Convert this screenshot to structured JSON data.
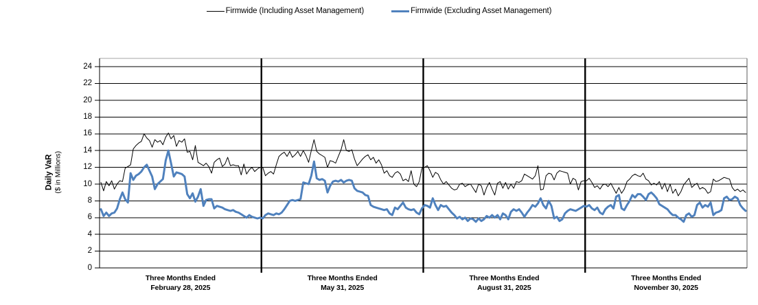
{
  "legend": {
    "items": [
      {
        "label": "Firmwide (Including Asset Management)",
        "color": "#000000",
        "thickness": 1
      },
      {
        "label": "Firmwide (Excluding Asset Management)",
        "color": "#4f81bd",
        "thickness": 3
      }
    ]
  },
  "y_axis": {
    "title_line1": "Daily VaR",
    "title_line2": "($ in Millions)"
  },
  "x_axis": {
    "labels": [
      {
        "line1": "Three Months Ended",
        "line2": "February 28, 2025"
      },
      {
        "line1": "Three Months Ended",
        "line2": "May 31, 2025"
      },
      {
        "line1": "Three Months Ended",
        "line2": "August 31, 2025"
      },
      {
        "line1": "Three Months Ended",
        "line2": "November 30, 2025"
      }
    ]
  },
  "chart_data": {
    "type": "line",
    "title": "",
    "xlabel": "",
    "ylabel": "Daily VaR ($ in Millions)",
    "ylim": [
      0,
      24
    ],
    "y_tick_step": 2,
    "grid": true,
    "legend_position": "top",
    "quarter_dividers": true,
    "x_groups": [
      "Three Months Ended February 28, 2025",
      "Three Months Ended May 31, 2025",
      "Three Months Ended August 31, 2025",
      "Three Months Ended November 30, 2025"
    ],
    "series": [
      {
        "name": "Firmwide (Including Asset Management)",
        "color": "#000000",
        "width": 1,
        "values_by_quarter": [
          [
            10.2,
            9.2,
            10.3,
            9.8,
            10.4,
            9.4,
            10.0,
            10.4,
            10.3,
            11.9,
            12.1,
            12.3,
            14.2,
            14.6,
            14.9,
            15.1,
            16.0,
            15.5,
            15.2,
            14.4,
            15.3,
            15.0,
            15.2,
            14.7,
            15.6,
            16.1,
            15.4,
            15.8,
            14.5,
            15.2,
            15.0,
            15.4,
            13.8,
            13.9,
            12.9,
            14.6,
            12.6,
            12.4,
            12.2,
            12.5,
            12.1,
            11.3,
            12.6,
            12.9,
            13.1,
            12.1,
            12.4,
            13.2,
            12.2,
            12.3,
            12.2,
            12.2,
            11.1,
            12.4,
            11.2,
            11.7,
            12.0,
            11.5,
            11.8,
            12.0
          ],
          [
            12.0,
            11.0,
            11.3,
            11.5,
            11.2,
            12.3,
            13.3,
            13.6,
            13.8,
            13.3,
            13.9,
            13.2,
            13.5,
            13.9,
            13.3,
            14.0,
            13.4,
            12.6,
            14.0,
            15.3,
            13.9,
            13.6,
            13.4,
            13.2,
            12.0,
            12.8,
            12.7,
            12.5,
            13.3,
            14.1,
            15.3,
            14.0,
            13.9,
            14.1,
            13.0,
            12.2,
            12.6,
            13.0,
            13.3,
            13.5,
            12.9,
            13.2,
            12.5,
            12.9,
            12.3,
            11.3,
            11.6,
            11.0,
            10.8,
            11.3,
            11.5,
            11.2,
            10.4,
            10.6,
            10.3,
            11.6,
            10.0,
            9.7,
            10.3,
            11.9
          ],
          [
            12.0,
            12.2,
            11.6,
            10.8,
            11.4,
            11.2,
            10.5,
            10.0,
            10.3,
            9.9,
            9.5,
            9.3,
            9.4,
            10.0,
            10.1,
            9.7,
            9.9,
            10.0,
            9.5,
            9.0,
            10.0,
            9.8,
            8.7,
            9.6,
            10.2,
            9.4,
            8.7,
            10.1,
            10.3,
            9.5,
            10.2,
            9.4,
            10.0,
            9.5,
            10.3,
            10.2,
            10.4,
            11.2,
            11.0,
            10.8,
            10.6,
            11.0,
            12.2,
            9.3,
            9.4,
            11.0,
            11.3,
            11.2,
            10.5,
            11.3,
            11.6,
            11.5,
            11.4,
            11.3,
            10.0,
            10.7,
            10.5,
            9.3,
            10.3,
            10.4
          ],
          [
            10.4,
            10.7,
            10.2,
            9.6,
            9.8,
            9.4,
            9.9,
            10.0,
            9.7,
            10.1,
            9.5,
            8.9,
            9.6,
            8.9,
            9.4,
            10.3,
            10.6,
            11.0,
            11.2,
            11.0,
            10.9,
            11.3,
            10.6,
            10.4,
            9.9,
            10.1,
            9.9,
            10.3,
            9.4,
            10.1,
            9.1,
            10.0,
            8.9,
            9.4,
            8.6,
            9.1,
            9.9,
            10.3,
            10.7,
            9.6,
            9.9,
            10.1,
            9.4,
            9.6,
            9.4,
            8.9,
            9.1,
            10.6,
            10.3,
            10.4,
            10.6,
            10.8,
            10.7,
            10.6,
            9.6,
            9.2,
            9.4,
            9.1,
            9.3,
            9.0
          ]
        ]
      },
      {
        "name": "Firmwide (Excluding Asset Management)",
        "color": "#4f81bd",
        "width": 3,
        "values_by_quarter": [
          [
            7.0,
            6.2,
            6.6,
            6.2,
            6.5,
            6.6,
            7.1,
            8.2,
            9.0,
            8.2,
            7.8,
            11.3,
            10.5,
            11.0,
            11.2,
            11.5,
            12.0,
            12.3,
            11.6,
            10.9,
            9.4,
            10.0,
            10.3,
            10.6,
            12.8,
            14.0,
            12.5,
            10.9,
            11.4,
            11.3,
            11.2,
            10.9,
            8.8,
            8.3,
            8.9,
            7.9,
            8.5,
            9.4,
            7.4,
            8.1,
            8.2,
            8.2,
            7.1,
            7.4,
            7.3,
            7.2,
            7.0,
            6.9,
            6.8,
            6.9,
            6.7,
            6.6,
            6.4,
            6.2,
            6.0,
            6.3,
            6.1,
            6.0,
            5.9,
            6.0
          ],
          [
            5.9,
            6.3,
            6.5,
            6.4,
            6.3,
            6.5,
            6.4,
            6.6,
            7.0,
            7.5,
            8.0,
            8.1,
            8.0,
            8.1,
            8.2,
            10.2,
            10.1,
            10.0,
            11.0,
            12.7,
            10.7,
            10.5,
            10.6,
            10.4,
            9.0,
            9.8,
            10.3,
            10.4,
            10.3,
            10.5,
            10.2,
            10.4,
            10.5,
            10.4,
            9.5,
            9.2,
            9.1,
            9.0,
            8.7,
            8.6,
            7.5,
            7.3,
            7.2,
            7.1,
            7.0,
            6.9,
            7.0,
            6.5,
            6.3,
            7.2,
            7.0,
            7.4,
            7.8,
            7.2,
            7.0,
            6.9,
            7.0,
            6.6,
            6.4,
            7.1
          ],
          [
            7.5,
            7.4,
            7.2,
            8.3,
            7.5,
            6.9,
            7.5,
            7.3,
            7.4,
            7.0,
            6.6,
            6.3,
            5.9,
            6.1,
            5.8,
            6.0,
            5.6,
            5.9,
            5.8,
            5.5,
            5.9,
            5.6,
            5.8,
            6.2,
            6.0,
            6.3,
            6.0,
            6.3,
            5.8,
            6.5,
            6.3,
            5.8,
            6.7,
            7.0,
            6.8,
            7.0,
            6.6,
            6.1,
            6.6,
            7.0,
            7.5,
            7.3,
            7.7,
            8.3,
            7.5,
            7.1,
            8.0,
            7.4,
            5.9,
            6.1,
            5.6,
            5.8,
            6.5,
            6.8,
            7.0,
            6.9,
            6.8,
            7.0,
            7.2,
            7.4
          ],
          [
            7.3,
            7.5,
            7.1,
            6.9,
            7.2,
            6.6,
            6.4,
            7.0,
            7.3,
            7.5,
            7.1,
            8.5,
            8.7,
            7.1,
            6.9,
            7.5,
            8.0,
            8.7,
            8.4,
            8.8,
            8.8,
            8.5,
            8.1,
            8.8,
            9.0,
            8.7,
            8.3,
            7.6,
            7.4,
            7.2,
            7.0,
            6.6,
            6.3,
            6.3,
            6.0,
            5.8,
            5.5,
            6.3,
            6.5,
            6.1,
            6.3,
            7.5,
            7.8,
            7.2,
            7.5,
            7.3,
            7.8,
            6.3,
            6.6,
            6.7,
            6.9,
            8.3,
            8.5,
            8.1,
            8.2,
            8.5,
            8.3,
            7.5,
            7.1,
            6.8
          ]
        ]
      }
    ],
    "colors": {
      "grid": "#000000",
      "plot_top_border": "#a6a6a6",
      "axis": "#000000"
    }
  }
}
